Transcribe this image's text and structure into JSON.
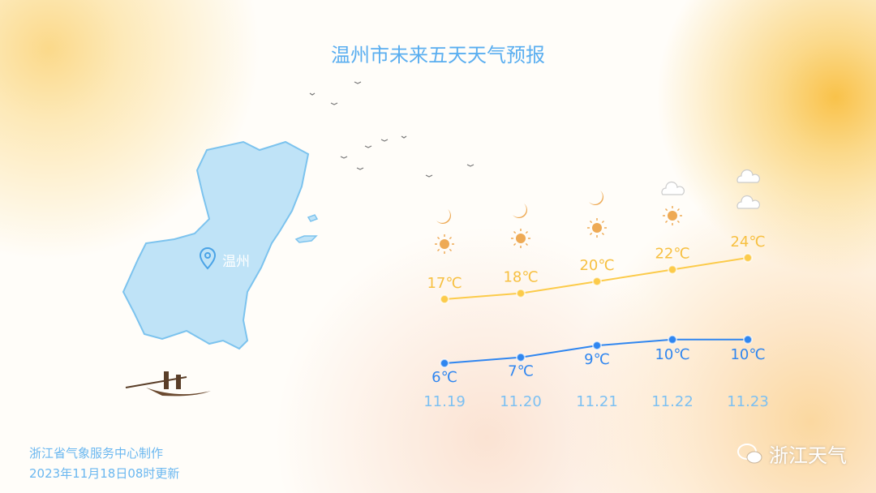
{
  "title": "温州市未来五天天气预报",
  "city": "温州",
  "chart_data": {
    "type": "line",
    "categories": [
      "11.19",
      "11.20",
      "11.21",
      "11.22",
      "11.23"
    ],
    "series": [
      {
        "values": [
          17,
          18,
          20,
          22,
          24
        ],
        "color": "#fccb4a",
        "label_color": "#f7c041"
      },
      {
        "values": [
          6,
          7,
          9,
          10,
          10
        ],
        "color": "#2f86f0",
        "label_color": "#2f86f0"
      }
    ],
    "unit": "℃",
    "icons_top": [
      "moon",
      "moon",
      "moon",
      "cloud",
      "cloud"
    ],
    "icons_bottom": [
      "sun",
      "sun",
      "sun",
      "sun",
      "cloud"
    ]
  },
  "footer": {
    "line1": "浙江省气象服务中心制作",
    "line2": "2023年11月18日08时更新"
  },
  "brand": {
    "name": "浙江天气",
    "icon": "wechat-icon"
  }
}
